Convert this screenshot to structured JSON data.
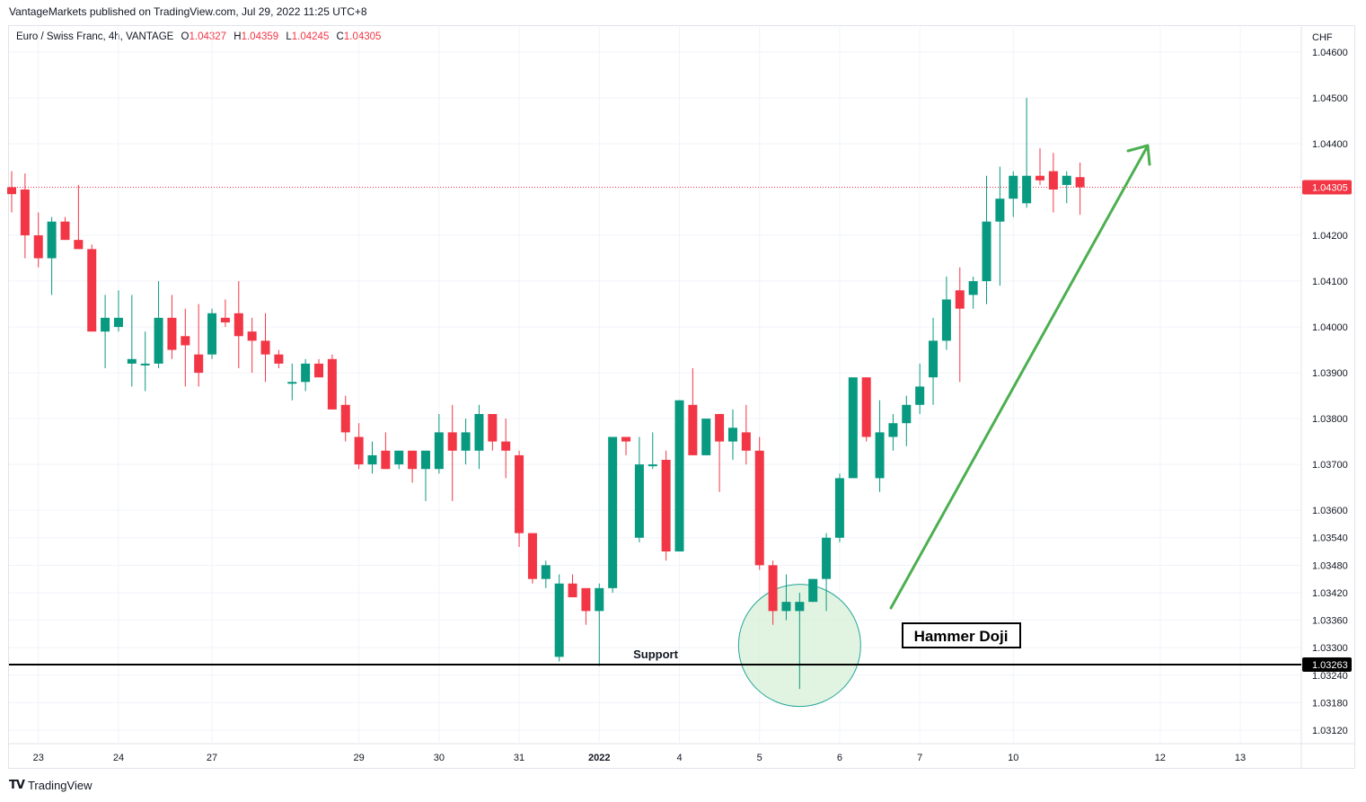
{
  "publisher_line": "VantageMarkets published on TradingView.com, Jul 29, 2022 11:25 UTC+8",
  "legend": {
    "symbol": "Euro / Swiss Franc, 4h, VANTAGE",
    "open_label": "O",
    "open": "1.04327",
    "high_label": "H",
    "high": "1.04359",
    "low_label": "L",
    "low": "1.04245",
    "close_label": "C",
    "close": "1.04305"
  },
  "footer": {
    "logo_text": "TV",
    "brand": "TradingView"
  },
  "colors": {
    "up": "#089981",
    "down": "#f23645",
    "arrow": "#4caf50",
    "circle_fill": "#d9f0d9",
    "circle_stroke": "#26a69a"
  },
  "chart_data": {
    "type": "candlestick",
    "currency": "CHF",
    "ylim": [
      1.0309,
      1.0465
    ],
    "y_ticks": [
      "1.04600",
      "1.04500",
      "1.04400",
      "1.04200",
      "1.04100",
      "1.04000",
      "1.03900",
      "1.03800",
      "1.03700",
      "1.03600",
      "1.03540",
      "1.03480",
      "1.03420",
      "1.03360",
      "1.03300",
      "1.03240",
      "1.03180",
      "1.03120"
    ],
    "x_ticks": [
      {
        "label": "23",
        "i": 2,
        "bold": false
      },
      {
        "label": "24",
        "i": 8,
        "bold": false
      },
      {
        "label": "27",
        "i": 15,
        "bold": false
      },
      {
        "label": "29",
        "i": 26,
        "bold": false
      },
      {
        "label": "30",
        "i": 32,
        "bold": false
      },
      {
        "label": "31",
        "i": 38,
        "bold": false
      },
      {
        "label": "2022",
        "i": 44,
        "bold": true
      },
      {
        "label": "4",
        "i": 50,
        "bold": false
      },
      {
        "label": "5",
        "i": 56,
        "bold": false
      },
      {
        "label": "6",
        "i": 62,
        "bold": false
      },
      {
        "label": "7",
        "i": 68,
        "bold": false
      },
      {
        "label": "10",
        "i": 75,
        "bold": false
      },
      {
        "label": "12",
        "i": 86,
        "bold": false
      },
      {
        "label": "13",
        "i": 92,
        "bold": false
      }
    ],
    "candles": [
      [
        1.04305,
        1.0434,
        1.0425,
        1.0429
      ],
      [
        1.043,
        1.04335,
        1.0415,
        1.042
      ],
      [
        1.042,
        1.0425,
        1.0413,
        1.0415
      ],
      [
        1.0415,
        1.0424,
        1.0407,
        1.0423
      ],
      [
        1.0423,
        1.0424,
        1.0419,
        1.0419
      ],
      [
        1.0419,
        1.0431,
        1.0417,
        1.0417
      ],
      [
        1.0417,
        1.0418,
        1.0399,
        1.0399
      ],
      [
        1.0399,
        1.0407,
        1.0391,
        1.0402
      ],
      [
        1.04,
        1.0408,
        1.0399,
        1.0402
      ],
      [
        1.0392,
        1.0407,
        1.0387,
        1.0393
      ],
      [
        1.0392,
        1.0399,
        1.0386,
        1.0392
      ],
      [
        1.0392,
        1.041,
        1.0391,
        1.0402
      ],
      [
        1.0402,
        1.0407,
        1.0393,
        1.0395
      ],
      [
        1.0398,
        1.0404,
        1.0387,
        1.0396
      ],
      [
        1.0394,
        1.0405,
        1.0387,
        1.039
      ],
      [
        1.0394,
        1.0404,
        1.0393,
        1.0403
      ],
      [
        1.0402,
        1.0406,
        1.04,
        1.0401
      ],
      [
        1.0403,
        1.041,
        1.0391,
        1.0398
      ],
      [
        1.0399,
        1.0402,
        1.039,
        1.0397
      ],
      [
        1.0397,
        1.0403,
        1.0388,
        1.0394
      ],
      [
        1.0394,
        1.0395,
        1.0391,
        1.0392
      ],
      [
        1.0388,
        1.0392,
        1.0384,
        1.0388
      ],
      [
        1.0388,
        1.0393,
        1.0386,
        1.0392
      ],
      [
        1.0392,
        1.0393,
        1.039,
        1.0389
      ],
      [
        1.0393,
        1.0394,
        1.0382,
        1.0382
      ],
      [
        1.0383,
        1.0385,
        1.0375,
        1.0377
      ],
      [
        1.0376,
        1.0379,
        1.0369,
        1.037
      ],
      [
        1.037,
        1.0375,
        1.0368,
        1.0372
      ],
      [
        1.0373,
        1.0377,
        1.0369,
        1.0369
      ],
      [
        1.037,
        1.0373,
        1.0369,
        1.0373
      ],
      [
        1.0373,
        1.0373,
        1.0366,
        1.0369
      ],
      [
        1.0369,
        1.0373,
        1.0362,
        1.0373
      ],
      [
        1.0369,
        1.0381,
        1.0368,
        1.0377
      ],
      [
        1.0377,
        1.0383,
        1.0362,
        1.0373
      ],
      [
        1.0373,
        1.038,
        1.037,
        1.0377
      ],
      [
        1.0373,
        1.0383,
        1.0369,
        1.0381
      ],
      [
        1.0381,
        1.038,
        1.0373,
        1.0375
      ],
      [
        1.0375,
        1.038,
        1.0367,
        1.0373
      ],
      [
        1.0372,
        1.0373,
        1.0352,
        1.0355
      ],
      [
        1.0355,
        1.0355,
        1.0344,
        1.0345
      ],
      [
        1.0345,
        1.0349,
        1.0343,
        1.0348
      ],
      [
        1.0328,
        1.0346,
        1.0327,
        1.0344
      ],
      [
        1.0344,
        1.0346,
        1.0341,
        1.0341
      ],
      [
        1.0343,
        1.0342,
        1.0335,
        1.0338
      ],
      [
        1.0338,
        1.0344,
        1.0326,
        1.0343
      ],
      [
        1.0343,
        1.0376,
        1.0342,
        1.0376
      ],
      [
        1.0376,
        1.0376,
        1.0372,
        1.0375
      ],
      [
        1.0354,
        1.0376,
        1.0353,
        1.037
      ],
      [
        1.037,
        1.0377,
        1.0369,
        1.037
      ],
      [
        1.0371,
        1.0373,
        1.0349,
        1.0351
      ],
      [
        1.0351,
        1.0384,
        1.0351,
        1.0384
      ],
      [
        1.0383,
        1.0391,
        1.0372,
        1.0372
      ],
      [
        1.0372,
        1.0379,
        1.0372,
        1.038
      ],
      [
        1.0381,
        1.0381,
        1.0364,
        1.0375
      ],
      [
        1.0375,
        1.0382,
        1.0371,
        1.0378
      ],
      [
        1.0377,
        1.0383,
        1.037,
        1.0373
      ],
      [
        1.0373,
        1.0376,
        1.0347,
        1.0348
      ],
      [
        1.0348,
        1.0349,
        1.0335,
        1.0338
      ],
      [
        1.0338,
        1.0346,
        1.0336,
        1.034
      ],
      [
        1.0338,
        1.0342,
        1.0321,
        1.034
      ],
      [
        1.034,
        1.0345,
        1.034,
        1.0345
      ],
      [
        1.0345,
        1.0355,
        1.0338,
        1.0354
      ],
      [
        1.0354,
        1.0368,
        1.0353,
        1.0367
      ],
      [
        1.0367,
        1.0389,
        1.0367,
        1.0389
      ],
      [
        1.0389,
        1.0389,
        1.0375,
        1.0376
      ],
      [
        1.0367,
        1.0384,
        1.0364,
        1.0377
      ],
      [
        1.0376,
        1.0381,
        1.0373,
        1.0379
      ],
      [
        1.0379,
        1.0385,
        1.0374,
        1.0383
      ],
      [
        1.0383,
        1.0392,
        1.0381,
        1.0387
      ],
      [
        1.0389,
        1.0402,
        1.0383,
        1.0397
      ],
      [
        1.0397,
        1.0411,
        1.0395,
        1.0406
      ],
      [
        1.0408,
        1.0413,
        1.0388,
        1.0404
      ],
      [
        1.0407,
        1.0411,
        1.0404,
        1.041
      ],
      [
        1.041,
        1.0433,
        1.0405,
        1.0423
      ],
      [
        1.0423,
        1.0435,
        1.0409,
        1.0428
      ],
      [
        1.0428,
        1.0434,
        1.0424,
        1.0433
      ],
      [
        1.0427,
        1.045,
        1.0426,
        1.0433
      ],
      [
        1.0433,
        1.0439,
        1.0431,
        1.0432
      ],
      [
        1.0434,
        1.0438,
        1.0425,
        1.043
      ],
      [
        1.0431,
        1.0434,
        1.0427,
        1.0433
      ],
      [
        1.04327,
        1.04359,
        1.04245,
        1.04305
      ]
    ]
  },
  "annotations": {
    "current_price_label": "1.04305",
    "support_price_label": "1.03263",
    "support_text": "Support",
    "hammer_text": "Hammer Doji"
  }
}
